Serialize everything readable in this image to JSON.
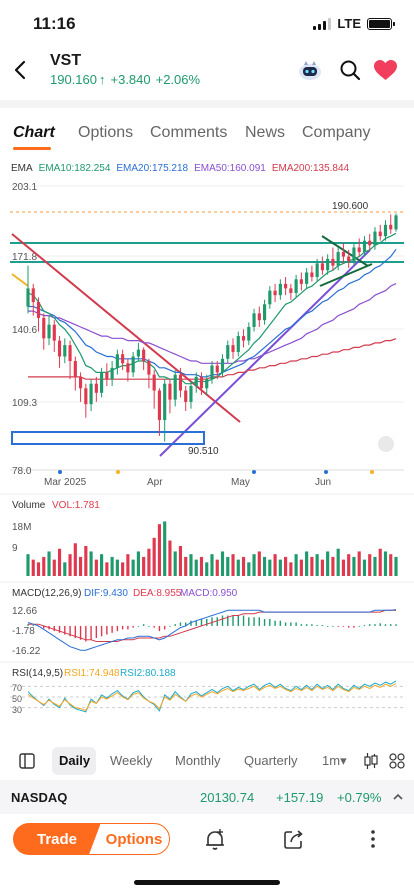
{
  "status": {
    "time": "11:16",
    "network": "LTE",
    "signal_bars": 4,
    "signal_active": 3,
    "battery_level": 1.0
  },
  "header": {
    "ticker": "VST",
    "price": "190.160",
    "arrow": "↑",
    "change": "+3.840",
    "change_pct": "+2.06%",
    "icons": [
      "mascot-icon",
      "search-icon",
      "heart-icon"
    ]
  },
  "tabs": [
    {
      "label": "Chart",
      "active": true
    },
    {
      "label": "Options",
      "active": false
    },
    {
      "label": "Comments",
      "active": false
    },
    {
      "label": "News",
      "active": false
    },
    {
      "label": "Company",
      "active": false
    }
  ],
  "ema_legend": {
    "title": "EMA",
    "ema10": "EMA10:182.254",
    "ema20": "EMA20:175.218",
    "ema50": "EMA50:160.091",
    "ema200": "EMA200:135.844"
  },
  "chart_data": [
    {
      "type": "candlestick",
      "y_ticks": [
        "203.1",
        "171.8",
        "140.6",
        "109.3",
        "78.0"
      ],
      "ylim": [
        78.0,
        203.1
      ],
      "x_labels": [
        "Mar 2025",
        "Apr",
        "May",
        "Jun"
      ],
      "annotations": {
        "high_label": "190.600",
        "low_label": "90.510",
        "last_price": 190.16
      },
      "series_colors": {
        "up": "#1e9a6c",
        "down": "#e0394f",
        "ema10": "#1e9a6c",
        "ema20": "#2a6fd6",
        "ema50": "#8a4fd0",
        "ema200": "#d23b4e"
      },
      "candles": [
        [
          150,
          158,
          168,
          147
        ],
        [
          158,
          152,
          160,
          146
        ],
        [
          152,
          145,
          154,
          139
        ],
        [
          145,
          136,
          147,
          131
        ],
        [
          136,
          142,
          146,
          133
        ],
        [
          142,
          135,
          144,
          130
        ],
        [
          135,
          128,
          137,
          123
        ],
        [
          128,
          133,
          136,
          125
        ],
        [
          133,
          126,
          135,
          118
        ],
        [
          126,
          119,
          128,
          113
        ],
        [
          119,
          114,
          121,
          108
        ],
        [
          114,
          107,
          116,
          101
        ],
        [
          107,
          116,
          118,
          104
        ],
        [
          116,
          112,
          119,
          108
        ],
        [
          112,
          121,
          123,
          110
        ],
        [
          121,
          118,
          125,
          115
        ],
        [
          118,
          123,
          126,
          115
        ],
        [
          123,
          129,
          131,
          120
        ],
        [
          129,
          125,
          131,
          122
        ],
        [
          125,
          121,
          127,
          117
        ],
        [
          121,
          128,
          130,
          119
        ],
        [
          128,
          131,
          134,
          126
        ],
        [
          131,
          126,
          132,
          122
        ],
        [
          126,
          120,
          127,
          114
        ],
        [
          120,
          113,
          122,
          105
        ],
        [
          113,
          100,
          114,
          93
        ],
        [
          100,
          116,
          118,
          90.51
        ],
        [
          116,
          109,
          118,
          103
        ],
        [
          109,
          120,
          122,
          106
        ],
        [
          120,
          113,
          123,
          110
        ],
        [
          113,
          108,
          115,
          104
        ],
        [
          108,
          115,
          117,
          105
        ],
        [
          115,
          119,
          121,
          112
        ],
        [
          119,
          114,
          121,
          111
        ],
        [
          114,
          118,
          120,
          111
        ],
        [
          118,
          124,
          126,
          116
        ],
        [
          124,
          121,
          126,
          118
        ],
        [
          121,
          127,
          129,
          119
        ],
        [
          127,
          133,
          135,
          125
        ],
        [
          133,
          130,
          136,
          127
        ],
        [
          130,
          137,
          139,
          128
        ],
        [
          137,
          135,
          140,
          132
        ],
        [
          135,
          141,
          143,
          133
        ],
        [
          141,
          147,
          149,
          139
        ],
        [
          147,
          144,
          150,
          141
        ],
        [
          144,
          151,
          153,
          142
        ],
        [
          151,
          157,
          159,
          149
        ],
        [
          157,
          155,
          160,
          152
        ],
        [
          155,
          160,
          162,
          153
        ],
        [
          160,
          158,
          163,
          155
        ],
        [
          158,
          156,
          160,
          153
        ],
        [
          156,
          162,
          164,
          154
        ],
        [
          162,
          160,
          165,
          157
        ],
        [
          160,
          165,
          167,
          158
        ],
        [
          165,
          163,
          168,
          161
        ],
        [
          163,
          169,
          171,
          161
        ],
        [
          169,
          166,
          172,
          164
        ],
        [
          166,
          171,
          173,
          164
        ],
        [
          171,
          168,
          176,
          166
        ],
        [
          168,
          174,
          176,
          166
        ],
        [
          174,
          172,
          178,
          169
        ],
        [
          172,
          170,
          175,
          167
        ],
        [
          170,
          176,
          178,
          168
        ],
        [
          176,
          174,
          180,
          172
        ],
        [
          174,
          179,
          181,
          172
        ],
        [
          179,
          177,
          182,
          175
        ],
        [
          177,
          183,
          185,
          175
        ],
        [
          183,
          181,
          186,
          179
        ],
        [
          181,
          186,
          188,
          179
        ],
        [
          186,
          184,
          190.6,
          182
        ],
        [
          184,
          190.16,
          191,
          183
        ]
      ],
      "ema10_values": [
        156,
        155,
        152,
        148,
        147,
        145,
        142,
        140,
        137,
        133,
        129,
        124,
        123,
        121,
        121,
        121,
        122,
        123,
        124,
        124,
        125,
        126,
        126,
        125,
        123,
        119,
        119,
        118,
        118,
        118,
        116,
        116,
        117,
        117,
        117,
        118,
        119,
        121,
        123,
        125,
        127,
        129,
        131,
        134,
        136,
        139,
        142,
        145,
        148,
        151,
        152,
        154,
        156,
        158,
        159,
        161,
        163,
        165,
        166,
        168,
        169,
        170,
        171,
        172,
        174,
        175,
        177,
        178,
        180,
        181,
        182.25
      ],
      "ema20_values": [
        150,
        150,
        149,
        148,
        147,
        146,
        144,
        143,
        141,
        139,
        136,
        133,
        132,
        130,
        129,
        128,
        128,
        127,
        127,
        127,
        127,
        127,
        127,
        126,
        125,
        123,
        123,
        122,
        121,
        121,
        120,
        120,
        120,
        119,
        119,
        120,
        120,
        121,
        122,
        123,
        124,
        125,
        127,
        128,
        130,
        132,
        134,
        136,
        138,
        140,
        141,
        143,
        145,
        147,
        148,
        150,
        152,
        153,
        155,
        157,
        158,
        160,
        161,
        162,
        164,
        165,
        167,
        168,
        170,
        172,
        175.22
      ],
      "ema50_values": [
        148,
        148,
        147,
        146,
        146,
        145,
        145,
        144,
        143,
        142,
        141,
        140,
        139,
        138,
        137,
        137,
        136,
        136,
        136,
        135,
        135,
        135,
        134,
        134,
        133,
        132,
        131,
        130,
        129,
        128,
        127,
        126,
        126,
        125,
        125,
        125,
        125,
        125,
        125,
        125,
        126,
        126,
        127,
        127,
        128,
        129,
        130,
        131,
        132,
        133,
        134,
        135,
        136,
        138,
        139,
        140,
        142,
        143,
        144,
        146,
        147,
        148,
        149,
        151,
        152,
        153,
        155,
        156,
        157,
        159,
        160.09
      ],
      "ema200_values": [
        119,
        119,
        119,
        119,
        119,
        119,
        119,
        119,
        119,
        119,
        119,
        118,
        118,
        118,
        118,
        118,
        118,
        118,
        118,
        118,
        118,
        118,
        118,
        118,
        118,
        118,
        118,
        118,
        118,
        118,
        118,
        118,
        118,
        118,
        118,
        119,
        119,
        119,
        120,
        120,
        121,
        121,
        122,
        122,
        123,
        123,
        124,
        124,
        125,
        125,
        126,
        126,
        127,
        127,
        128,
        128,
        129,
        129,
        130,
        130,
        131,
        131,
        132,
        132,
        133,
        133,
        134,
        134,
        135,
        135,
        135.84
      ]
    },
    {
      "type": "bar",
      "title": "Volume",
      "metric": "VOL:1.781",
      "y_ticks": [
        "18M",
        "9"
      ],
      "ylim": [
        0,
        22
      ],
      "values": [
        8,
        6,
        5,
        7,
        9,
        6,
        10,
        5,
        8,
        12,
        7,
        11,
        9,
        6,
        8,
        5,
        7,
        6,
        5,
        8,
        6,
        9,
        7,
        10,
        14,
        19,
        20,
        13,
        9,
        11,
        7,
        8,
        6,
        7,
        5,
        8,
        6,
        9,
        7,
        8,
        6,
        7,
        5,
        8,
        9,
        7,
        6,
        8,
        6,
        7,
        5,
        8,
        6,
        9,
        7,
        8,
        6,
        9,
        7,
        10,
        6,
        8,
        7,
        9,
        6,
        8,
        7,
        10,
        9,
        8,
        7
      ]
    },
    {
      "type": "bar",
      "title": "MACD(12,26,9)",
      "dif": "DIF:9.430",
      "dea": "DEA:8.955",
      "macd": "MACD:0.950",
      "y_ticks": [
        "12.66",
        "-1.78",
        "-16.22"
      ],
      "ylim": [
        -16.22,
        12.66
      ],
      "hist": [
        1,
        0.5,
        -0.5,
        -1.5,
        -2,
        -3,
        -4,
        -5,
        -6,
        -7,
        -8,
        -9,
        -8,
        -7,
        -6,
        -5,
        -4,
        -3,
        -2,
        -2,
        -1,
        0,
        1,
        0,
        -1,
        -3,
        -2,
        0,
        1,
        2,
        2,
        3,
        3,
        4,
        4,
        5,
        5,
        6,
        6,
        6,
        6,
        6,
        5,
        5,
        5,
        4,
        4,
        3,
        3,
        2,
        2,
        2,
        1,
        1,
        1,
        0.5,
        0.5,
        0,
        0,
        -0.5,
        -0.5,
        -1,
        -1,
        0,
        0.5,
        1,
        1,
        1.5,
        1,
        1,
        0.95
      ],
      "dif_values": [
        2,
        1,
        0,
        -2,
        -4,
        -6,
        -8,
        -10,
        -12,
        -13,
        -14,
        -14,
        -13,
        -12,
        -11,
        -10,
        -9,
        -8,
        -8,
        -7,
        -7,
        -6,
        -6,
        -6,
        -7,
        -8,
        -7,
        -5,
        -3,
        -1,
        0,
        2,
        3,
        4,
        5,
        6,
        7,
        8,
        9,
        9,
        9,
        9,
        9,
        9,
        9,
        8,
        8,
        8,
        8,
        8,
        8,
        8,
        8,
        8,
        8,
        8,
        8,
        8,
        8,
        8,
        8,
        8,
        8,
        8,
        8,
        8,
        9,
        9,
        9,
        9,
        9.43
      ],
      "dea_values": [
        1,
        1,
        1,
        0,
        -1,
        -2,
        -3,
        -4,
        -5,
        -6,
        -7,
        -8,
        -8,
        -9,
        -9,
        -9,
        -9,
        -9,
        -8,
        -8,
        -8,
        -7,
        -7,
        -7,
        -7,
        -7,
        -6,
        -6,
        -5,
        -4,
        -3,
        -2,
        -1,
        0,
        1,
        2,
        3,
        4,
        5,
        6,
        6,
        7,
        7,
        7,
        8,
        8,
        8,
        8,
        8,
        8,
        8,
        8,
        8,
        8,
        8,
        8,
        8,
        8,
        8,
        8,
        8,
        8,
        8,
        8,
        8,
        8,
        8,
        8,
        9,
        9,
        8.955
      ]
    },
    {
      "type": "line",
      "title": "RSI(14,9,5)",
      "rsi1": "RSI1:74.948",
      "rsi2": "RSI2:80.188",
      "y_ticks": [
        "70",
        "50",
        "30"
      ],
      "ylim": [
        20,
        80
      ],
      "rsi1_values": [
        55,
        48,
        42,
        36,
        44,
        38,
        33,
        45,
        37,
        30,
        28,
        25,
        42,
        38,
        50,
        46,
        52,
        58,
        50,
        45,
        55,
        58,
        48,
        42,
        38,
        28,
        50,
        44,
        55,
        48,
        42,
        52,
        56,
        50,
        55,
        60,
        56,
        62,
        66,
        60,
        65,
        62,
        66,
        70,
        62,
        68,
        72,
        66,
        70,
        64,
        60,
        66,
        62,
        68,
        62,
        70,
        64,
        68,
        62,
        70,
        64,
        60,
        68,
        64,
        70,
        66,
        72,
        68,
        74,
        70,
        74.95
      ],
      "rsi2_values": [
        60,
        50,
        42,
        34,
        46,
        36,
        30,
        48,
        35,
        28,
        25,
        22,
        46,
        38,
        54,
        48,
        56,
        62,
        52,
        46,
        58,
        62,
        50,
        42,
        36,
        24,
        54,
        46,
        60,
        50,
        42,
        56,
        60,
        52,
        58,
        64,
        58,
        66,
        70,
        62,
        68,
        64,
        70,
        74,
        64,
        72,
        76,
        68,
        74,
        66,
        62,
        70,
        64,
        72,
        64,
        74,
        66,
        72,
        64,
        74,
        66,
        62,
        72,
        66,
        74,
        70,
        76,
        72,
        78,
        74,
        80.19
      ]
    }
  ],
  "period_bar": {
    "items": [
      "Daily",
      "Weekly",
      "Monthly",
      "Quarterly",
      "1m"
    ],
    "selected": "Daily",
    "dropdown_arrow": "▾"
  },
  "index_bar": {
    "name": "NASDAQ",
    "value": "20130.74",
    "change": "+157.19",
    "change_pct": "+0.79%"
  },
  "bottom_bar": {
    "trade": "Trade",
    "options": "Options",
    "icons": [
      "bell-icon",
      "share-icon",
      "more-icon"
    ]
  }
}
